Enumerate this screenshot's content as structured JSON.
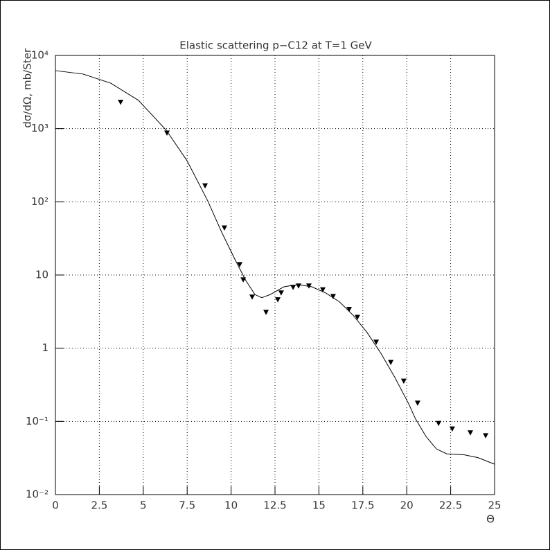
{
  "chart_data": {
    "type": "scatter",
    "title": "Elastic scattering p−C12 at T=1 GeV",
    "x_label": "Θ",
    "y_label": "dσ/dΩ, mb/Ster",
    "xlim": [
      0,
      25
    ],
    "xticks": [
      0,
      2.5,
      5,
      7.5,
      10,
      12.5,
      15,
      17.5,
      20,
      22.5,
      25
    ],
    "ylim": [
      0.01,
      10000
    ],
    "yticks": [
      {
        "value": 0.01,
        "label": "10⁻²"
      },
      {
        "value": 0.1,
        "label": "10⁻¹"
      },
      1,
      10,
      {
        "value": 100,
        "label": "10²"
      },
      {
        "value": 1000,
        "label": "10³"
      },
      {
        "value": 10000,
        "label": "10⁴"
      }
    ],
    "log_y": true,
    "grid": true,
    "series": [
      {
        "type": "line",
        "color": "#000000",
        "x": [
          0,
          1.58,
          3.15,
          4.73,
          6.31,
          7.49,
          8.68,
          9.46,
          10.25,
          10.84,
          11.36,
          11.75,
          12.22,
          13.01,
          13.8,
          14.59,
          15.38,
          16.17,
          16.96,
          17.74,
          18.53,
          19.32,
          20.11,
          20.5,
          21.1,
          21.69,
          22.28,
          23.26,
          24.05,
          25
        ],
        "values": [
          6200,
          5560,
          4180,
          2430,
          950,
          365,
          102,
          38.6,
          15.8,
          8.4,
          5.4,
          4.9,
          5.4,
          6.9,
          7.4,
          6.9,
          5.7,
          4.3,
          2.8,
          1.64,
          0.85,
          0.4,
          0.174,
          0.108,
          0.062,
          0.042,
          0.036,
          0.035,
          0.032,
          0.026
        ]
      },
      {
        "type": "scatter",
        "color": "#000000",
        "marker": "triangle-down",
        "x": [
          3.71,
          6.35,
          8.52,
          9.62,
          10.49,
          10.69,
          11.2,
          11.99,
          12.66,
          12.85,
          13.53,
          13.84,
          14.43,
          15.22,
          15.81,
          16.72,
          17.19,
          18.26,
          19.09,
          19.83,
          20.62,
          21.81,
          22.59,
          23.62,
          24.49
        ],
        "values": [
          2300,
          870,
          166,
          44,
          13.9,
          8.6,
          5.0,
          3.1,
          4.6,
          5.7,
          6.8,
          7.1,
          7.1,
          6.3,
          5.1,
          3.4,
          2.65,
          1.21,
          0.64,
          0.356,
          0.178,
          0.094,
          0.079,
          0.07,
          0.064
        ]
      }
    ]
  }
}
